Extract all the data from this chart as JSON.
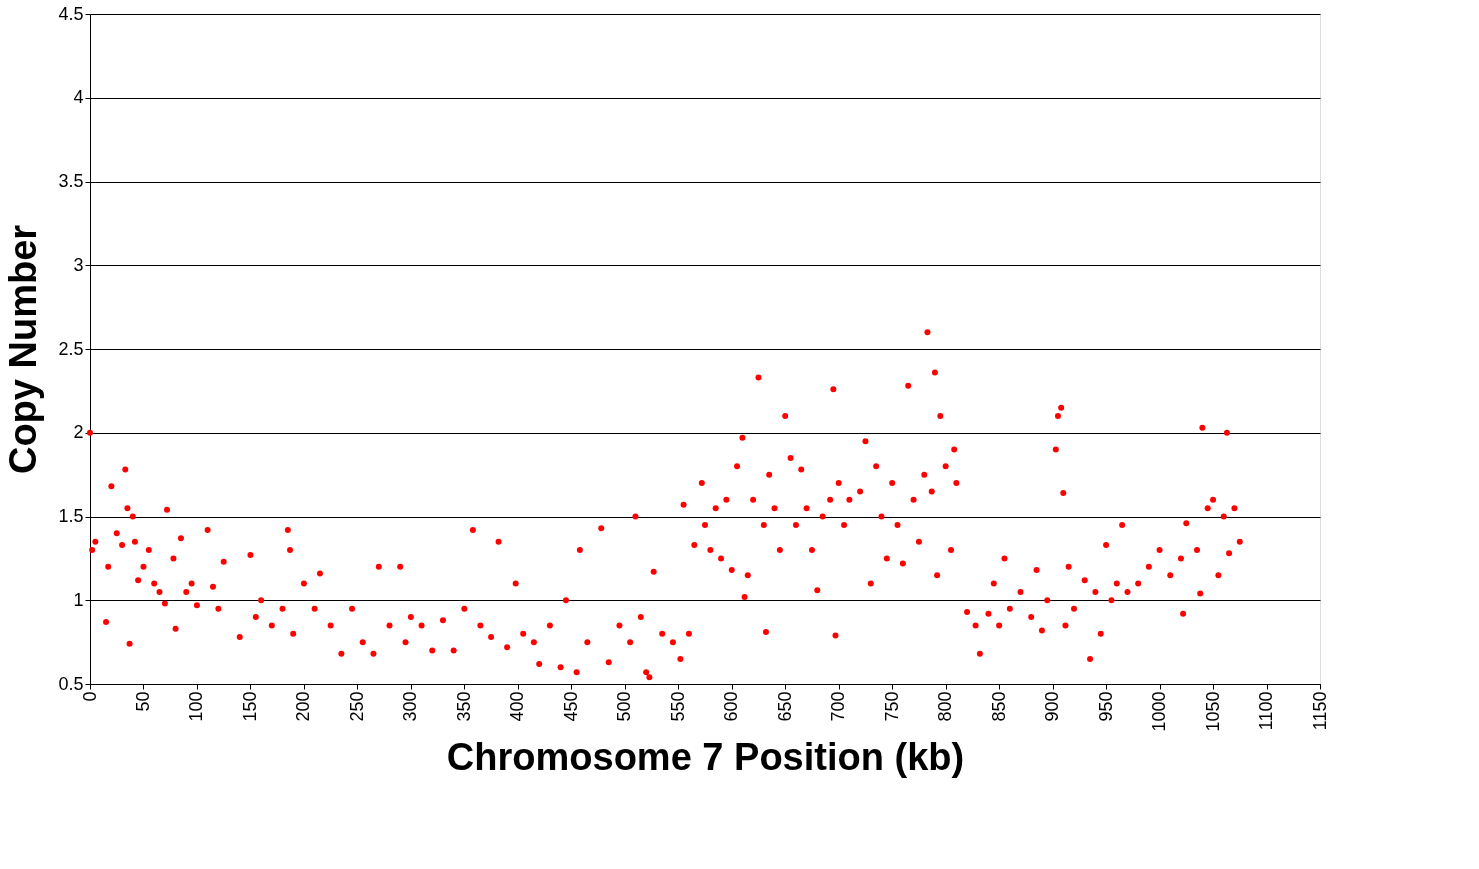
{
  "chart_data": {
    "type": "scatter",
    "xlabel": "Chromosome 7 Position  (kb)",
    "ylabel": "Copy Number",
    "xlim": [
      0,
      1150
    ],
    "ylim": [
      0.5,
      4.5
    ],
    "xticks": [
      0,
      50,
      100,
      150,
      200,
      250,
      300,
      350,
      400,
      450,
      500,
      550,
      600,
      650,
      700,
      750,
      800,
      850,
      900,
      950,
      1000,
      1050,
      1100,
      1150
    ],
    "yticks": [
      0.5,
      1,
      1.5,
      2,
      2.5,
      3,
      3.5,
      4,
      4.5
    ],
    "grid": "y",
    "legend": false,
    "marker": "circle",
    "x": [
      0,
      2,
      5,
      15,
      17,
      20,
      25,
      30,
      33,
      35,
      37,
      40,
      42,
      45,
      50,
      55,
      60,
      65,
      70,
      72,
      78,
      80,
      85,
      90,
      95,
      100,
      110,
      115,
      120,
      125,
      140,
      150,
      155,
      160,
      170,
      180,
      185,
      187,
      190,
      200,
      210,
      215,
      225,
      235,
      245,
      255,
      265,
      270,
      280,
      290,
      295,
      300,
      310,
      320,
      330,
      340,
      350,
      358,
      365,
      375,
      382,
      390,
      398,
      405,
      415,
      420,
      430,
      440,
      445,
      455,
      458,
      465,
      478,
      485,
      495,
      505,
      510,
      515,
      520,
      523,
      527,
      535,
      545,
      552,
      555,
      560,
      565,
      572,
      575,
      580,
      585,
      590,
      595,
      600,
      605,
      610,
      612,
      615,
      620,
      625,
      630,
      632,
      635,
      640,
      645,
      650,
      655,
      660,
      665,
      670,
      675,
      680,
      685,
      692,
      695,
      697,
      700,
      705,
      710,
      720,
      725,
      730,
      735,
      740,
      745,
      750,
      755,
      760,
      765,
      770,
      775,
      780,
      783,
      787,
      790,
      792,
      795,
      800,
      805,
      808,
      810,
      820,
      828,
      832,
      840,
      845,
      850,
      855,
      860,
      870,
      880,
      885,
      890,
      895,
      903,
      905,
      908,
      910,
      912,
      915,
      920,
      930,
      935,
      940,
      945,
      950,
      955,
      960,
      965,
      970,
      980,
      990,
      1000,
      1010,
      1020,
      1022,
      1025,
      1035,
      1038,
      1040,
      1045,
      1050,
      1055,
      1060,
      1063,
      1065,
      1070,
      1075
    ],
    "series": [
      {
        "color": "#ff0000",
        "values": [
          2.0,
          1.3,
          1.35,
          0.87,
          1.2,
          1.68,
          1.4,
          1.33,
          1.78,
          1.55,
          0.74,
          1.5,
          1.35,
          1.12,
          1.2,
          1.3,
          1.1,
          1.05,
          0.98,
          1.54,
          1.25,
          0.83,
          1.37,
          1.05,
          1.1,
          0.97,
          1.42,
          1.08,
          0.95,
          1.23,
          0.78,
          1.27,
          0.9,
          1.0,
          0.85,
          0.95,
          1.42,
          1.3,
          0.8,
          1.1,
          0.95,
          1.16,
          0.85,
          0.68,
          0.95,
          0.75,
          0.68,
          1.2,
          0.85,
          1.2,
          0.75,
          0.9,
          0.85,
          0.7,
          0.88,
          0.7,
          0.95,
          1.42,
          0.85,
          0.78,
          1.35,
          0.72,
          1.1,
          0.8,
          0.75,
          0.62,
          0.85,
          0.6,
          1.0,
          0.57,
          1.3,
          0.75,
          1.43,
          0.63,
          0.85,
          0.75,
          1.5,
          0.9,
          0.57,
          0.54,
          1.17,
          0.8,
          0.75,
          0.65,
          1.57,
          0.8,
          1.33,
          1.7,
          1.45,
          1.3,
          1.55,
          1.25,
          1.6,
          1.18,
          1.8,
          1.97,
          1.02,
          1.15,
          1.6,
          2.33,
          1.45,
          0.81,
          1.75,
          1.55,
          1.3,
          2.1,
          1.85,
          1.45,
          1.78,
          1.55,
          1.3,
          1.06,
          1.5,
          1.6,
          2.26,
          0.79,
          1.7,
          1.45,
          1.6,
          1.65,
          1.95,
          1.1,
          1.8,
          1.5,
          1.25,
          1.7,
          1.45,
          1.22,
          2.28,
          1.6,
          1.35,
          1.75,
          2.6,
          1.65,
          2.36,
          1.15,
          2.1,
          1.8,
          1.3,
          1.9,
          1.7,
          0.93,
          0.85,
          0.68,
          0.92,
          1.1,
          0.85,
          1.25,
          0.95,
          1.05,
          0.9,
          1.18,
          0.82,
          1.0,
          1.9,
          2.1,
          2.15,
          1.64,
          0.85,
          1.2,
          0.95,
          1.12,
          0.65,
          1.05,
          0.8,
          1.33,
          1.0,
          1.1,
          1.45,
          1.05,
          1.1,
          1.2,
          1.3,
          1.15,
          1.25,
          0.92,
          1.46,
          1.3,
          1.04,
          2.03,
          1.55,
          1.6,
          1.15,
          1.5,
          2.0,
          1.28,
          1.55,
          1.35
        ]
      }
    ]
  }
}
